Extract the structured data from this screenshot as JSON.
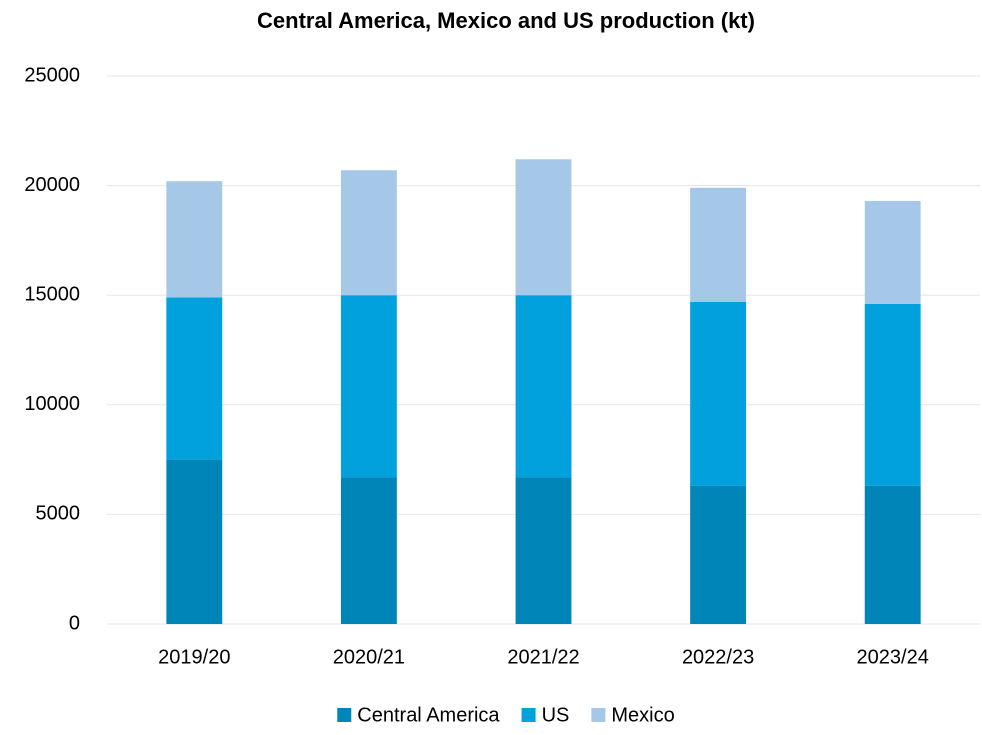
{
  "chart_data": {
    "type": "stacked_bar",
    "title": "Central America, Mexico and US production (kt)",
    "categories": [
      "2019/20",
      "2020/21",
      "2021/22",
      "2022/23",
      "2023/24"
    ],
    "series": [
      {
        "name": "Central America",
        "color": "#0085b9",
        "values": [
          7500,
          6700,
          6700,
          6300,
          6300
        ]
      },
      {
        "name": "US",
        "color": "#00a1dc",
        "values": [
          7400,
          8300,
          8300,
          8400,
          8300
        ]
      },
      {
        "name": "Mexico",
        "color": "#a5c8e8",
        "values": [
          5300,
          5700,
          6200,
          5200,
          4700
        ]
      }
    ],
    "ylim": [
      0,
      25000
    ],
    "yticks": [
      0,
      5000,
      10000,
      15000,
      20000,
      25000
    ],
    "grid": true,
    "legend": "bottom"
  }
}
